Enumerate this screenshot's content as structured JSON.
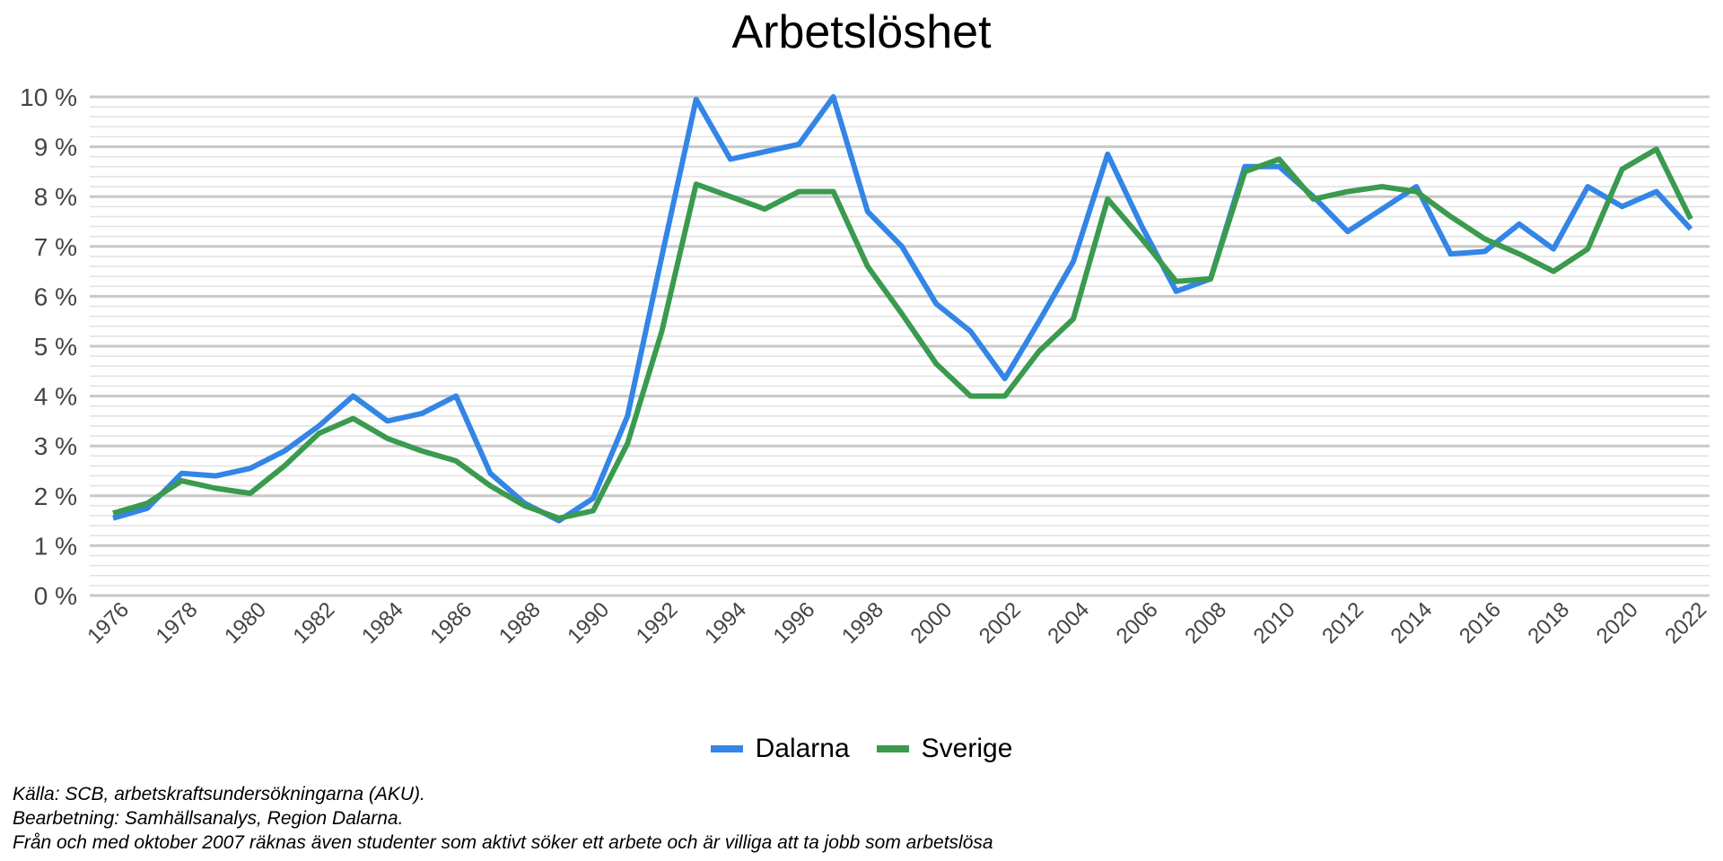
{
  "chart_data": {
    "type": "line",
    "title": "Arbetslöshet",
    "x": [
      1976,
      1977,
      1978,
      1979,
      1980,
      1981,
      1982,
      1983,
      1984,
      1985,
      1986,
      1987,
      1988,
      1989,
      1990,
      1991,
      1992,
      1993,
      1994,
      1995,
      1996,
      1997,
      1998,
      1999,
      2000,
      2001,
      2002,
      2003,
      2004,
      2005,
      2006,
      2007,
      2008,
      2009,
      2010,
      2011,
      2012,
      2013,
      2014,
      2015,
      2016,
      2017,
      2018,
      2019,
      2020,
      2021,
      2022
    ],
    "xticks": [
      "1976",
      "1978",
      "1980",
      "1982",
      "1984",
      "1986",
      "1988",
      "1990",
      "1992",
      "1994",
      "1996",
      "1998",
      "2000",
      "2002",
      "2004",
      "2006",
      "2008",
      "2010",
      "2012",
      "2014",
      "2016",
      "2018",
      "2020",
      "2022"
    ],
    "yticks": [
      "0 %",
      "1 %",
      "2 %",
      "3 %",
      "4 %",
      "5 %",
      "6 %",
      "7 %",
      "8 %",
      "9 %",
      "10 %"
    ],
    "ylim": [
      0,
      10
    ],
    "grid": true,
    "legend_position": "bottom",
    "series": [
      {
        "name": "Dalarna",
        "color": "#3385e6",
        "values": [
          1.55,
          1.75,
          2.45,
          2.4,
          2.55,
          2.9,
          3.4,
          4.0,
          3.5,
          3.65,
          4.0,
          2.45,
          1.85,
          1.5,
          1.95,
          3.6,
          6.8,
          9.95,
          8.75,
          8.9,
          9.05,
          10.0,
          7.7,
          7.0,
          5.85,
          5.3,
          4.35,
          5.5,
          6.7,
          8.85,
          7.4,
          6.1,
          6.35,
          8.6,
          8.6,
          8.0,
          7.3,
          7.75,
          8.2,
          6.85,
          6.9,
          7.45,
          6.95,
          8.2,
          7.8,
          8.1,
          7.35
        ]
      },
      {
        "name": "Sverige",
        "color": "#3a9a4e",
        "values": [
          1.65,
          1.85,
          2.3,
          2.15,
          2.05,
          2.6,
          3.25,
          3.55,
          3.15,
          2.9,
          2.7,
          2.2,
          1.8,
          1.55,
          1.7,
          3.05,
          5.3,
          8.25,
          8.0,
          7.75,
          8.1,
          8.1,
          6.6,
          5.65,
          4.65,
          4.0,
          4.0,
          4.9,
          5.55,
          7.95,
          7.15,
          6.3,
          6.35,
          8.5,
          8.75,
          7.95,
          8.1,
          8.2,
          8.1,
          7.6,
          7.15,
          6.85,
          6.5,
          6.95,
          8.55,
          8.95,
          7.55
        ]
      }
    ]
  },
  "footnotes": [
    "Källa: SCB, arbetskraftsundersökningarna (AKU).",
    "Bearbetning: Samhällsanalys, Region Dalarna.",
    "Från och med oktober 2007 räknas även studenter som aktivt söker ett arbete och är villiga att ta jobb som arbetslösa"
  ]
}
